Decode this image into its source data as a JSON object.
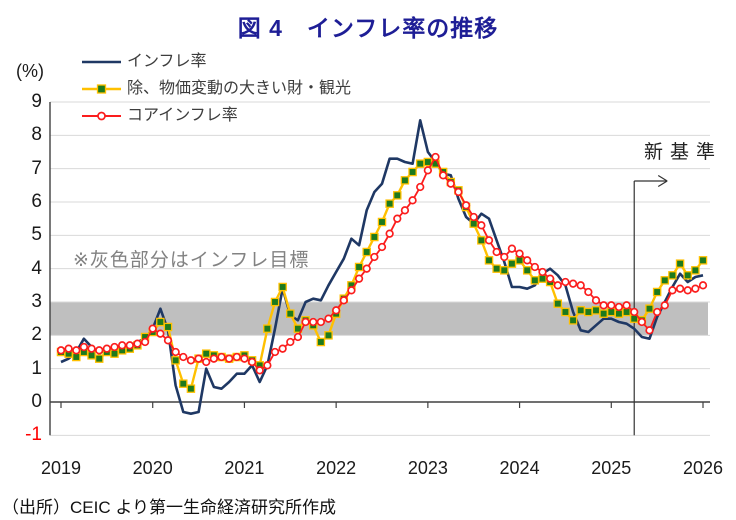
{
  "title": "図 4　インフレ率の推移",
  "source_note": "（出所）CEIC より第一生命経済研究所作成",
  "y_axis": {
    "unit_label": "(%)",
    "tick_values": [
      9,
      8,
      7,
      6,
      5,
      4,
      3,
      2,
      1,
      0,
      -1
    ]
  },
  "x_axis": {
    "year_labels": [
      "2019",
      "2020",
      "2021",
      "2022",
      "2023",
      "2024",
      "2025",
      "2026"
    ]
  },
  "annotations": {
    "band_note": "※灰色部分はインフレ目標",
    "new_standard_label": "新基準"
  },
  "legend": {
    "items": [
      {
        "label": "インフレ率",
        "color": "#1f3864",
        "marker": "none"
      },
      {
        "label": "除、物価変動の大きい財・観光",
        "color": "#ffc000",
        "marker": "square",
        "marker_color": "#1d7a1d"
      },
      {
        "label": "コアインフレ率",
        "color": "#fb1d1d",
        "marker": "circle-open",
        "marker_color": "#ffffff"
      }
    ]
  },
  "chart_data": {
    "type": "line",
    "freq": "monthly",
    "x_start": "2019-01",
    "x_end": "2026-01",
    "ylim": [
      -1,
      9
    ],
    "grid": true,
    "gridline_color": "#d9d9d9",
    "axis_color": "#404040",
    "target_band": {
      "from": 2,
      "to": 3,
      "color": "#bfbfbf"
    },
    "new_standard_vline": {
      "x": "2025-04"
    },
    "series": [
      {
        "name": "インフレ率",
        "color": "#1f3864",
        "marker": "none",
        "values": [
          1.2,
          1.3,
          1.5,
          1.9,
          1.65,
          1.45,
          1.6,
          1.6,
          1.7,
          1.7,
          1.8,
          1.9,
          2.2,
          2.8,
          2.15,
          0.5,
          -0.3,
          -0.35,
          -0.3,
          1.0,
          0.45,
          0.4,
          0.6,
          0.85,
          0.85,
          1.1,
          0.6,
          1.1,
          2.2,
          3.4,
          2.6,
          2.45,
          3.0,
          3.1,
          3.05,
          3.5,
          3.9,
          4.3,
          4.9,
          4.7,
          5.75,
          6.3,
          6.55,
          7.3,
          7.3,
          7.2,
          7.15,
          8.45,
          7.5,
          7.2,
          6.85,
          6.8,
          6.1,
          5.55,
          5.35,
          5.65,
          5.5,
          4.85,
          4.2,
          3.45,
          3.45,
          3.4,
          3.5,
          3.85,
          4.0,
          3.8,
          3.5,
          2.7,
          2.15,
          2.1,
          2.3,
          2.5,
          2.5,
          2.4,
          2.35,
          2.2,
          1.95,
          1.9,
          2.55,
          3.0,
          3.45,
          3.85,
          3.6,
          3.75,
          3.8
        ]
      },
      {
        "name": "除、物価変動の大きい財・観光",
        "color": "#ffc000",
        "marker": "square",
        "marker_color": "#1d7a1d",
        "values": [
          1.5,
          1.45,
          1.35,
          1.5,
          1.4,
          1.3,
          1.5,
          1.45,
          1.55,
          1.6,
          1.7,
          1.95,
          2.1,
          2.4,
          2.25,
          1.25,
          0.55,
          0.4,
          1.3,
          1.45,
          1.4,
          1.35,
          1.3,
          1.35,
          1.4,
          1.25,
          1.1,
          2.2,
          3.0,
          3.45,
          2.65,
          2.2,
          2.45,
          2.3,
          1.8,
          2.0,
          2.65,
          3.1,
          3.5,
          4.05,
          4.5,
          4.95,
          5.4,
          5.95,
          6.2,
          6.65,
          6.9,
          7.15,
          7.2,
          7.15,
          6.9,
          6.6,
          6.35,
          5.85,
          5.35,
          4.85,
          4.25,
          4.0,
          3.95,
          4.15,
          4.25,
          3.95,
          3.65,
          3.7,
          3.6,
          2.95,
          2.7,
          2.45,
          2.75,
          2.7,
          2.75,
          2.65,
          2.7,
          2.65,
          2.7,
          2.5,
          2.45,
          2.8,
          3.3,
          3.65,
          3.8,
          4.15,
          3.8,
          3.95,
          4.25
        ]
      },
      {
        "name": "コアインフレ率",
        "color": "#fb1d1d",
        "marker": "circle-open",
        "marker_color": "#ffffff",
        "values": [
          1.55,
          1.6,
          1.55,
          1.65,
          1.6,
          1.55,
          1.6,
          1.65,
          1.7,
          1.7,
          1.75,
          1.8,
          2.2,
          2.05,
          1.85,
          1.5,
          1.35,
          1.25,
          1.3,
          1.2,
          1.3,
          1.35,
          1.3,
          1.35,
          1.3,
          1.2,
          0.95,
          1.1,
          1.5,
          1.6,
          1.8,
          1.95,
          2.4,
          2.4,
          2.4,
          2.5,
          2.75,
          3.05,
          3.35,
          3.7,
          4.0,
          4.35,
          4.65,
          5.05,
          5.5,
          5.75,
          6.05,
          6.45,
          6.95,
          7.35,
          6.8,
          6.55,
          6.3,
          5.9,
          5.55,
          5.3,
          4.85,
          4.5,
          4.35,
          4.6,
          4.45,
          4.25,
          4.05,
          3.9,
          3.7,
          3.5,
          3.6,
          3.55,
          3.5,
          3.3,
          3.05,
          2.9,
          2.9,
          2.85,
          2.9,
          2.7,
          2.4,
          2.15,
          2.7,
          2.9,
          3.35,
          3.4,
          3.35,
          3.4,
          3.5
        ]
      }
    ]
  }
}
